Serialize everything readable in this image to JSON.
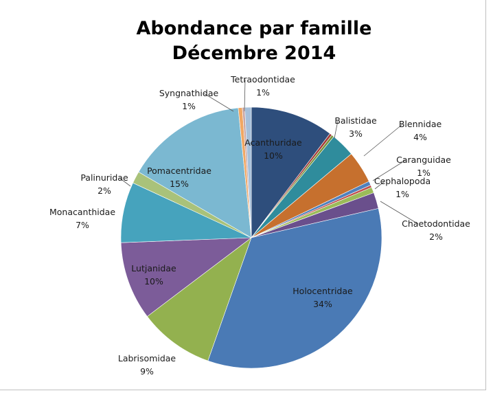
{
  "chart_data": {
    "type": "pie",
    "title": "Abondance par famille",
    "subtitle": "Décembre 2014",
    "slices": [
      {
        "label": "Acanthuridae",
        "pct_label": "10%",
        "value": 10.3,
        "color": "#2e4e7c"
      },
      {
        "label": "",
        "pct_label": "",
        "value": 0.3,
        "color": "#a33a37"
      },
      {
        "label": "",
        "pct_label": "",
        "value": 0.3,
        "color": "#76923c"
      },
      {
        "label": "Balistidae",
        "pct_label": "3%",
        "value": 3.0,
        "color": "#2f8c9c"
      },
      {
        "label": "Blennidae",
        "pct_label": "4%",
        "value": 4.0,
        "color": "#c6702e"
      },
      {
        "label": "Caranguidae",
        "pct_label": "1%",
        "value": 0.5,
        "color": "#4f81bd"
      },
      {
        "label": "",
        "pct_label": "",
        "value": 0.3,
        "color": "#c0504d"
      },
      {
        "label": "Cephalopoda",
        "pct_label": "1%",
        "value": 0.7,
        "color": "#9bbb59"
      },
      {
        "label": "Chaetodontidae",
        "pct_label": "2%",
        "value": 2.0,
        "color": "#6a4f8c"
      },
      {
        "label": "Holocentridae",
        "pct_label": "34%",
        "value": 34.0,
        "color": "#4a7ab5"
      },
      {
        "label": "Labrisomidae",
        "pct_label": "9%",
        "value": 9.3,
        "color": "#93b14f"
      },
      {
        "label": "Lutjanidae",
        "pct_label": "10%",
        "value": 9.7,
        "color": "#7c5c99"
      },
      {
        "label": "Monacanthidae",
        "pct_label": "7%",
        "value": 7.5,
        "color": "#46a3bd"
      },
      {
        "label": "Palinuridae",
        "pct_label": "2%",
        "value": 1.5,
        "color": "#a9c27a"
      },
      {
        "label": "Pomacentridae",
        "pct_label": "15%",
        "value": 15.0,
        "color": "#7bb8d1"
      },
      {
        "label": "Syngnathidae",
        "pct_label": "1%",
        "value": 0.5,
        "color": "#f0a763"
      },
      {
        "label": "",
        "pct_label": "",
        "value": 0.3,
        "color": "#c9a6a4"
      },
      {
        "label": "Tetraodontidae",
        "pct_label": "1%",
        "value": 0.8,
        "color": "#a6c0da"
      }
    ],
    "legend": "none"
  }
}
